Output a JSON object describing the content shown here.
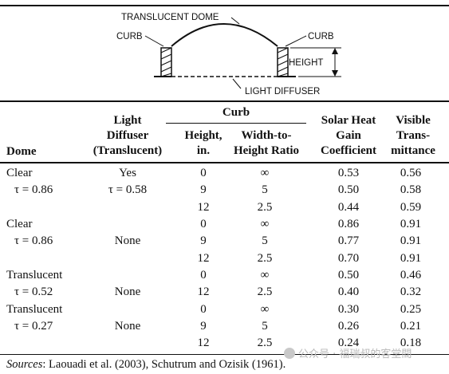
{
  "diagram": {
    "dome_label": "TRANSLUCENT DOME",
    "curb_left_label": "CURB",
    "curb_right_label": "CURB",
    "height_label": "HEIGHT",
    "diffuser_label": "LIGHT DIFFUSER"
  },
  "table": {
    "headers": {
      "dome": "Dome",
      "diffuser_line1": "Light",
      "diffuser_line2": "Diffuser",
      "diffuser_line3": "(Translucent)",
      "curb_group": "Curb",
      "height_line1": "Height,",
      "height_line2": "in.",
      "width_line1": "Width-to-",
      "width_line2": "Height Ratio",
      "shgc_line1": "Solar Heat",
      "shgc_line2": "Gain",
      "shgc_line3": "Coefficient",
      "vt_line1": "Visible",
      "vt_line2": "Trans-",
      "vt_line3": "mittance"
    },
    "rows": [
      {
        "dome": "Clear",
        "diffuser": "Yes",
        "height": "0",
        "ratio": "∞",
        "shgc": "0.53",
        "vt": "0.56"
      },
      {
        "dome": "τ = 0.86",
        "diffuser": "τ = 0.58",
        "height": "9",
        "ratio": "5",
        "shgc": "0.50",
        "vt": "0.58"
      },
      {
        "dome": "",
        "diffuser": "",
        "height": "12",
        "ratio": "2.5",
        "shgc": "0.44",
        "vt": "0.59"
      },
      {
        "dome": "Clear",
        "diffuser": "",
        "height": "0",
        "ratio": "∞",
        "shgc": "0.86",
        "vt": "0.91"
      },
      {
        "dome": "τ = 0.86",
        "diffuser": "None",
        "height": "9",
        "ratio": "5",
        "shgc": "0.77",
        "vt": "0.91"
      },
      {
        "dome": "",
        "diffuser": "",
        "height": "12",
        "ratio": "2.5",
        "shgc": "0.70",
        "vt": "0.91"
      },
      {
        "dome": "Translucent",
        "diffuser": "",
        "height": "0",
        "ratio": "∞",
        "shgc": "0.50",
        "vt": "0.46"
      },
      {
        "dome": "τ = 0.52",
        "diffuser": "None",
        "height": "12",
        "ratio": "2.5",
        "shgc": "0.40",
        "vt": "0.32"
      },
      {
        "dome": "Translucent",
        "diffuser": "",
        "height": "0",
        "ratio": "∞",
        "shgc": "0.30",
        "vt": "0.25"
      },
      {
        "dome": "τ = 0.27",
        "diffuser": "None",
        "height": "9",
        "ratio": "5",
        "shgc": "0.26",
        "vt": "0.21"
      },
      {
        "dome": "",
        "diffuser": "",
        "height": "12",
        "ratio": "2.5",
        "shgc": "0.24",
        "vt": "0.18"
      }
    ]
  },
  "sources": {
    "label": "Sources",
    "text": ": Laouadi et al. (2003), Schutrum and Ozisik (1961)."
  },
  "watermark": {
    "text": "公众号 · 福瑞叔的客堂間",
    "icon": "wechat-icon"
  }
}
